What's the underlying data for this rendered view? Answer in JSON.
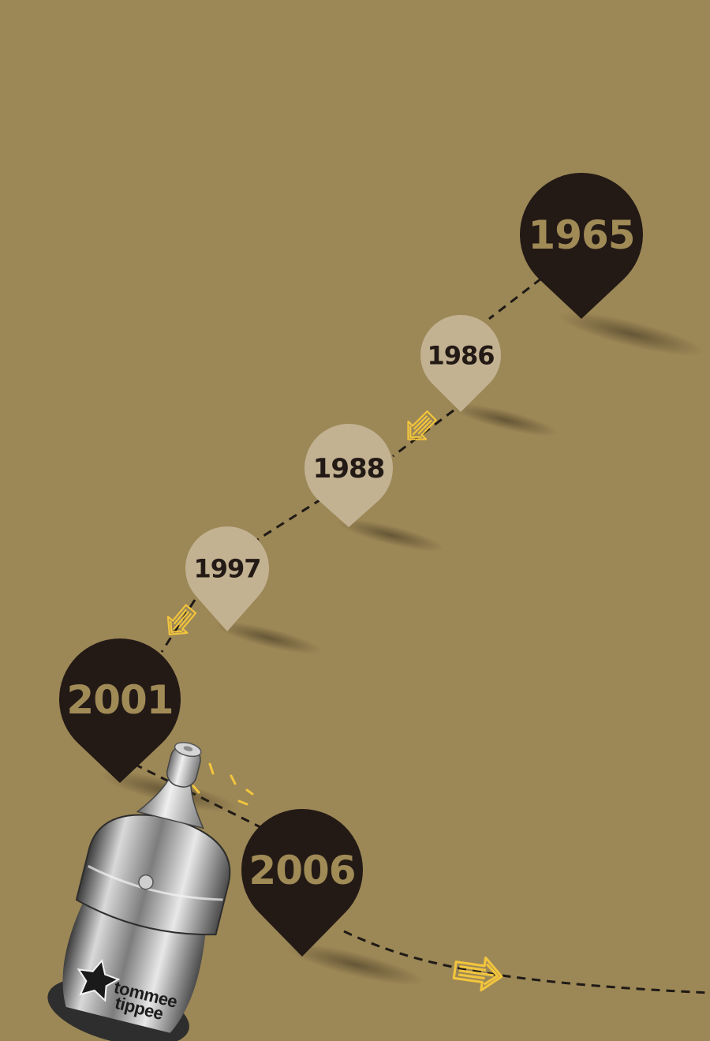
{
  "colors": {
    "background": "#9c8756",
    "pin_dark": "#231a16",
    "pin_light": "#c2b292",
    "text_on_dark": "#a08a56",
    "text_on_light": "#231a16",
    "arrow_yellow": "#f2c53d",
    "path_dash": "#1f1a16"
  },
  "timeline": [
    {
      "year": "1965",
      "style": "dark"
    },
    {
      "year": "1986",
      "style": "light"
    },
    {
      "year": "1988",
      "style": "light"
    },
    {
      "year": "1997",
      "style": "light"
    },
    {
      "year": "2001",
      "style": "dark"
    },
    {
      "year": "2006",
      "style": "dark"
    }
  ],
  "product": {
    "brand_line_1": "tommee",
    "brand_line_2": "tippee",
    "icon": "baby-bottle-icon"
  }
}
